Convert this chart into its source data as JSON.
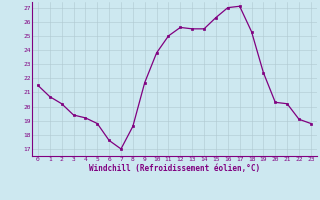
{
  "x": [
    0,
    1,
    2,
    3,
    4,
    5,
    6,
    7,
    8,
    9,
    10,
    11,
    12,
    13,
    14,
    15,
    16,
    17,
    18,
    19,
    20,
    21,
    22,
    23
  ],
  "y": [
    21.5,
    20.7,
    20.2,
    19.4,
    19.2,
    18.8,
    17.6,
    17.0,
    18.6,
    21.7,
    23.8,
    25.0,
    25.6,
    25.5,
    25.5,
    26.3,
    27.0,
    27.1,
    25.3,
    22.4,
    20.3,
    20.2,
    19.1,
    18.8
  ],
  "ylim_min": 16.5,
  "ylim_max": 27.4,
  "yticks": [
    17,
    18,
    19,
    20,
    21,
    22,
    23,
    24,
    25,
    26,
    27
  ],
  "xlabel": "Windchill (Refroidissement éolien,°C)",
  "line_color": "#800080",
  "marker_color": "#800080",
  "bg_color": "#cde8f0",
  "grid_color": "#b0c8d0",
  "tick_color": "#800080",
  "label_color": "#800080",
  "spine_color": "#800080"
}
